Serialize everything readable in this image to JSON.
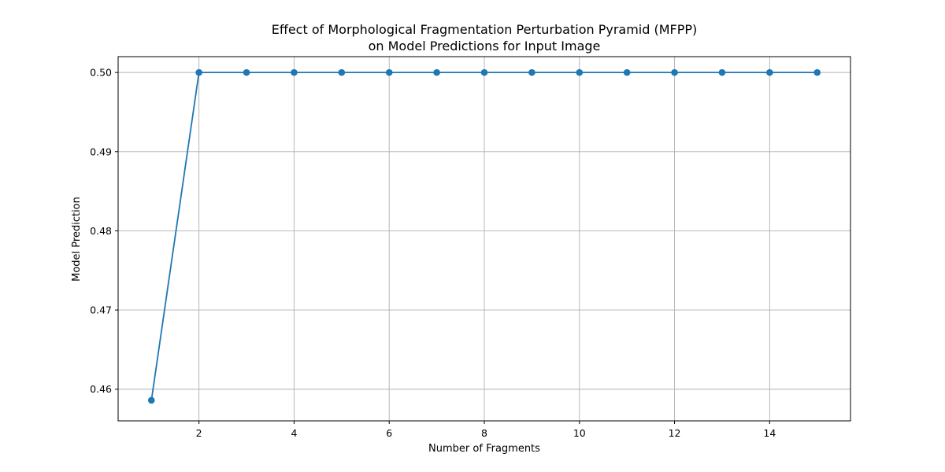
{
  "chart_data": {
    "type": "line",
    "title_lines": [
      "Effect of Morphological Fragmentation Perturbation Pyramid (MFPP)",
      "on Model Predictions for Input Image"
    ],
    "xlabel": "Number of Fragments",
    "ylabel": "Model Prediction",
    "xlim": [
      0.3,
      15.7
    ],
    "ylim": [
      0.456,
      0.502
    ],
    "x_ticks": [
      2,
      4,
      6,
      8,
      10,
      12,
      14
    ],
    "y_ticks": [
      0.46,
      0.47,
      0.48,
      0.49,
      0.5
    ],
    "y_tick_labels": [
      "0.46",
      "0.47",
      "0.48",
      "0.49",
      "0.50"
    ],
    "grid": true,
    "color": "#1f77b4",
    "series": [
      {
        "x": [
          1,
          2,
          3,
          4,
          5,
          6,
          7,
          8,
          9,
          10,
          11,
          12,
          13,
          14,
          15
        ],
        "y": [
          0.4586,
          0.5,
          0.5,
          0.5,
          0.5,
          0.5,
          0.5,
          0.5,
          0.5,
          0.5,
          0.5,
          0.5,
          0.5,
          0.5,
          0.5
        ]
      }
    ]
  }
}
